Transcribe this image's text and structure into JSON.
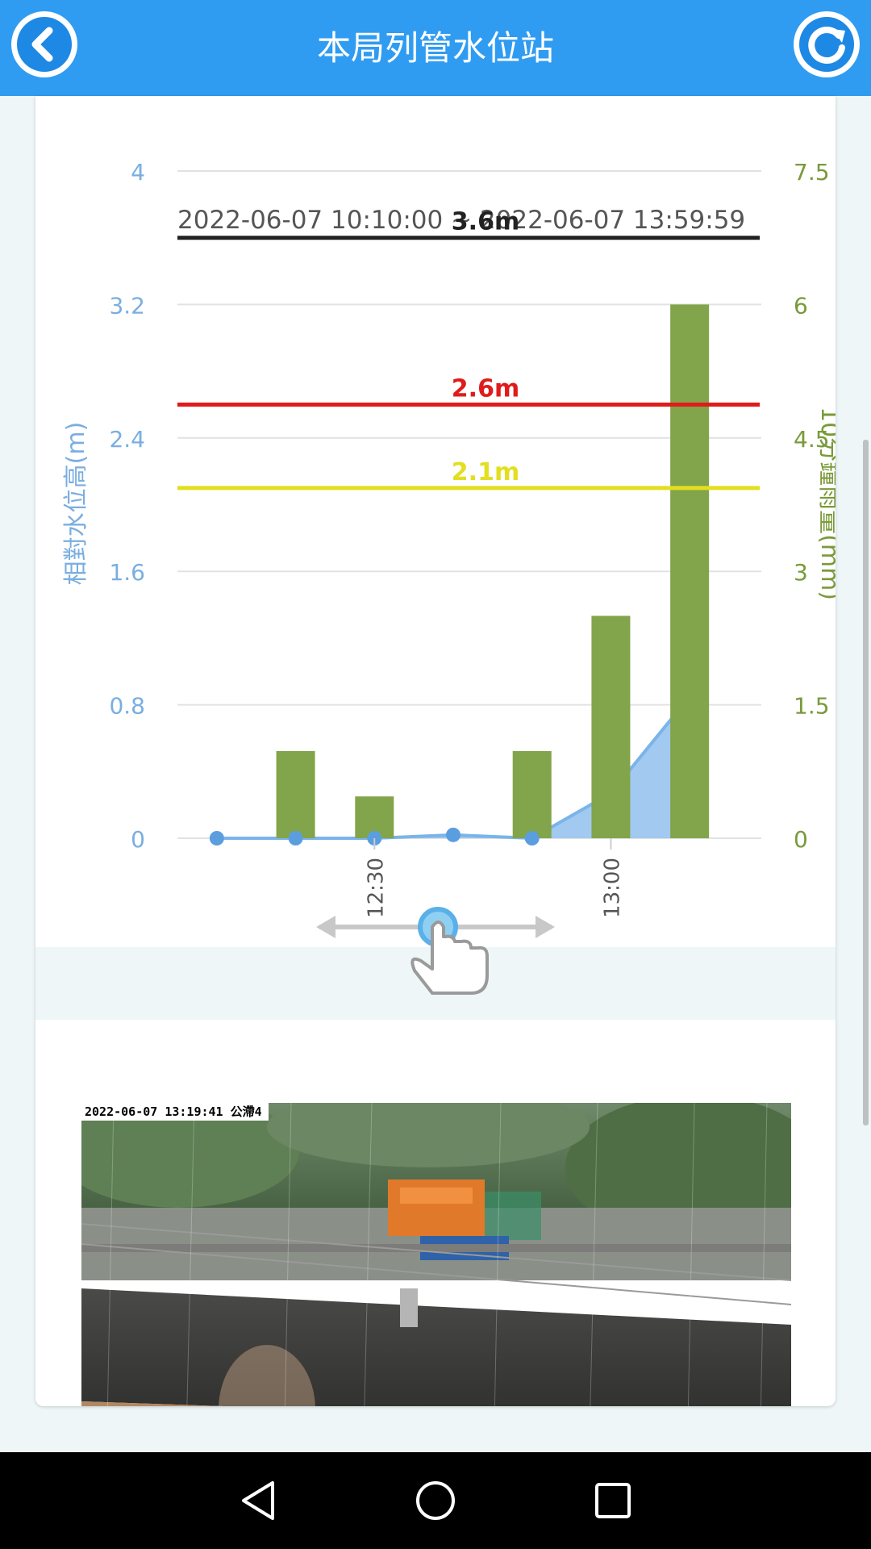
{
  "header": {
    "title": "本局列管水位站",
    "back_icon": "back-arrow-icon",
    "refresh_icon": "refresh-icon",
    "color": "#2f9cf2"
  },
  "chart": {
    "time_range": "2022-06-07 10:10:00 ~ 2022-06-07 13:59:59"
  },
  "chart_data": {
    "type": "bar",
    "x_tick_labels": [
      "12:30",
      "13:00"
    ],
    "y_left": {
      "label": "相對水位高(m)",
      "ticks": [
        "0",
        "0.8",
        "1.6",
        "2.4",
        "3.2",
        "4"
      ],
      "range": [
        0,
        4
      ],
      "color": "#7aaee0"
    },
    "y_right": {
      "label": "10分鐘雨量(mm)",
      "ticks": [
        "0",
        "1.5",
        "3",
        "4.5",
        "6",
        "7.5"
      ],
      "range": [
        0,
        7.5
      ],
      "color": "#7a9a3a"
    },
    "thresholds": [
      {
        "value": 3.6,
        "label": "3.6m",
        "color": "#222222"
      },
      {
        "value": 2.6,
        "label": "2.6m",
        "color": "#e01b1b"
      },
      {
        "value": 2.1,
        "label": "2.1m",
        "color": "#e3df1f"
      }
    ],
    "series": [
      {
        "type": "bar",
        "axis": "right",
        "color": "#82a44a",
        "values": [
          0,
          0.98,
          0.47,
          0,
          0.98,
          2.5,
          6.0
        ]
      },
      {
        "type": "area",
        "axis": "left",
        "color": "#9dc6ee",
        "values": [
          0,
          0,
          0,
          0.02,
          0,
          0.27,
          0.85
        ]
      }
    ],
    "grid": true
  },
  "gesture_hint": {
    "icon": "swipe-hand-icon"
  },
  "camera": {
    "timestamp": "2022-06-07  13:19:41  公滯4"
  },
  "navbar": {
    "back_icon": "nav-back-icon",
    "home_icon": "nav-home-icon",
    "recents_icon": "nav-recents-icon"
  }
}
